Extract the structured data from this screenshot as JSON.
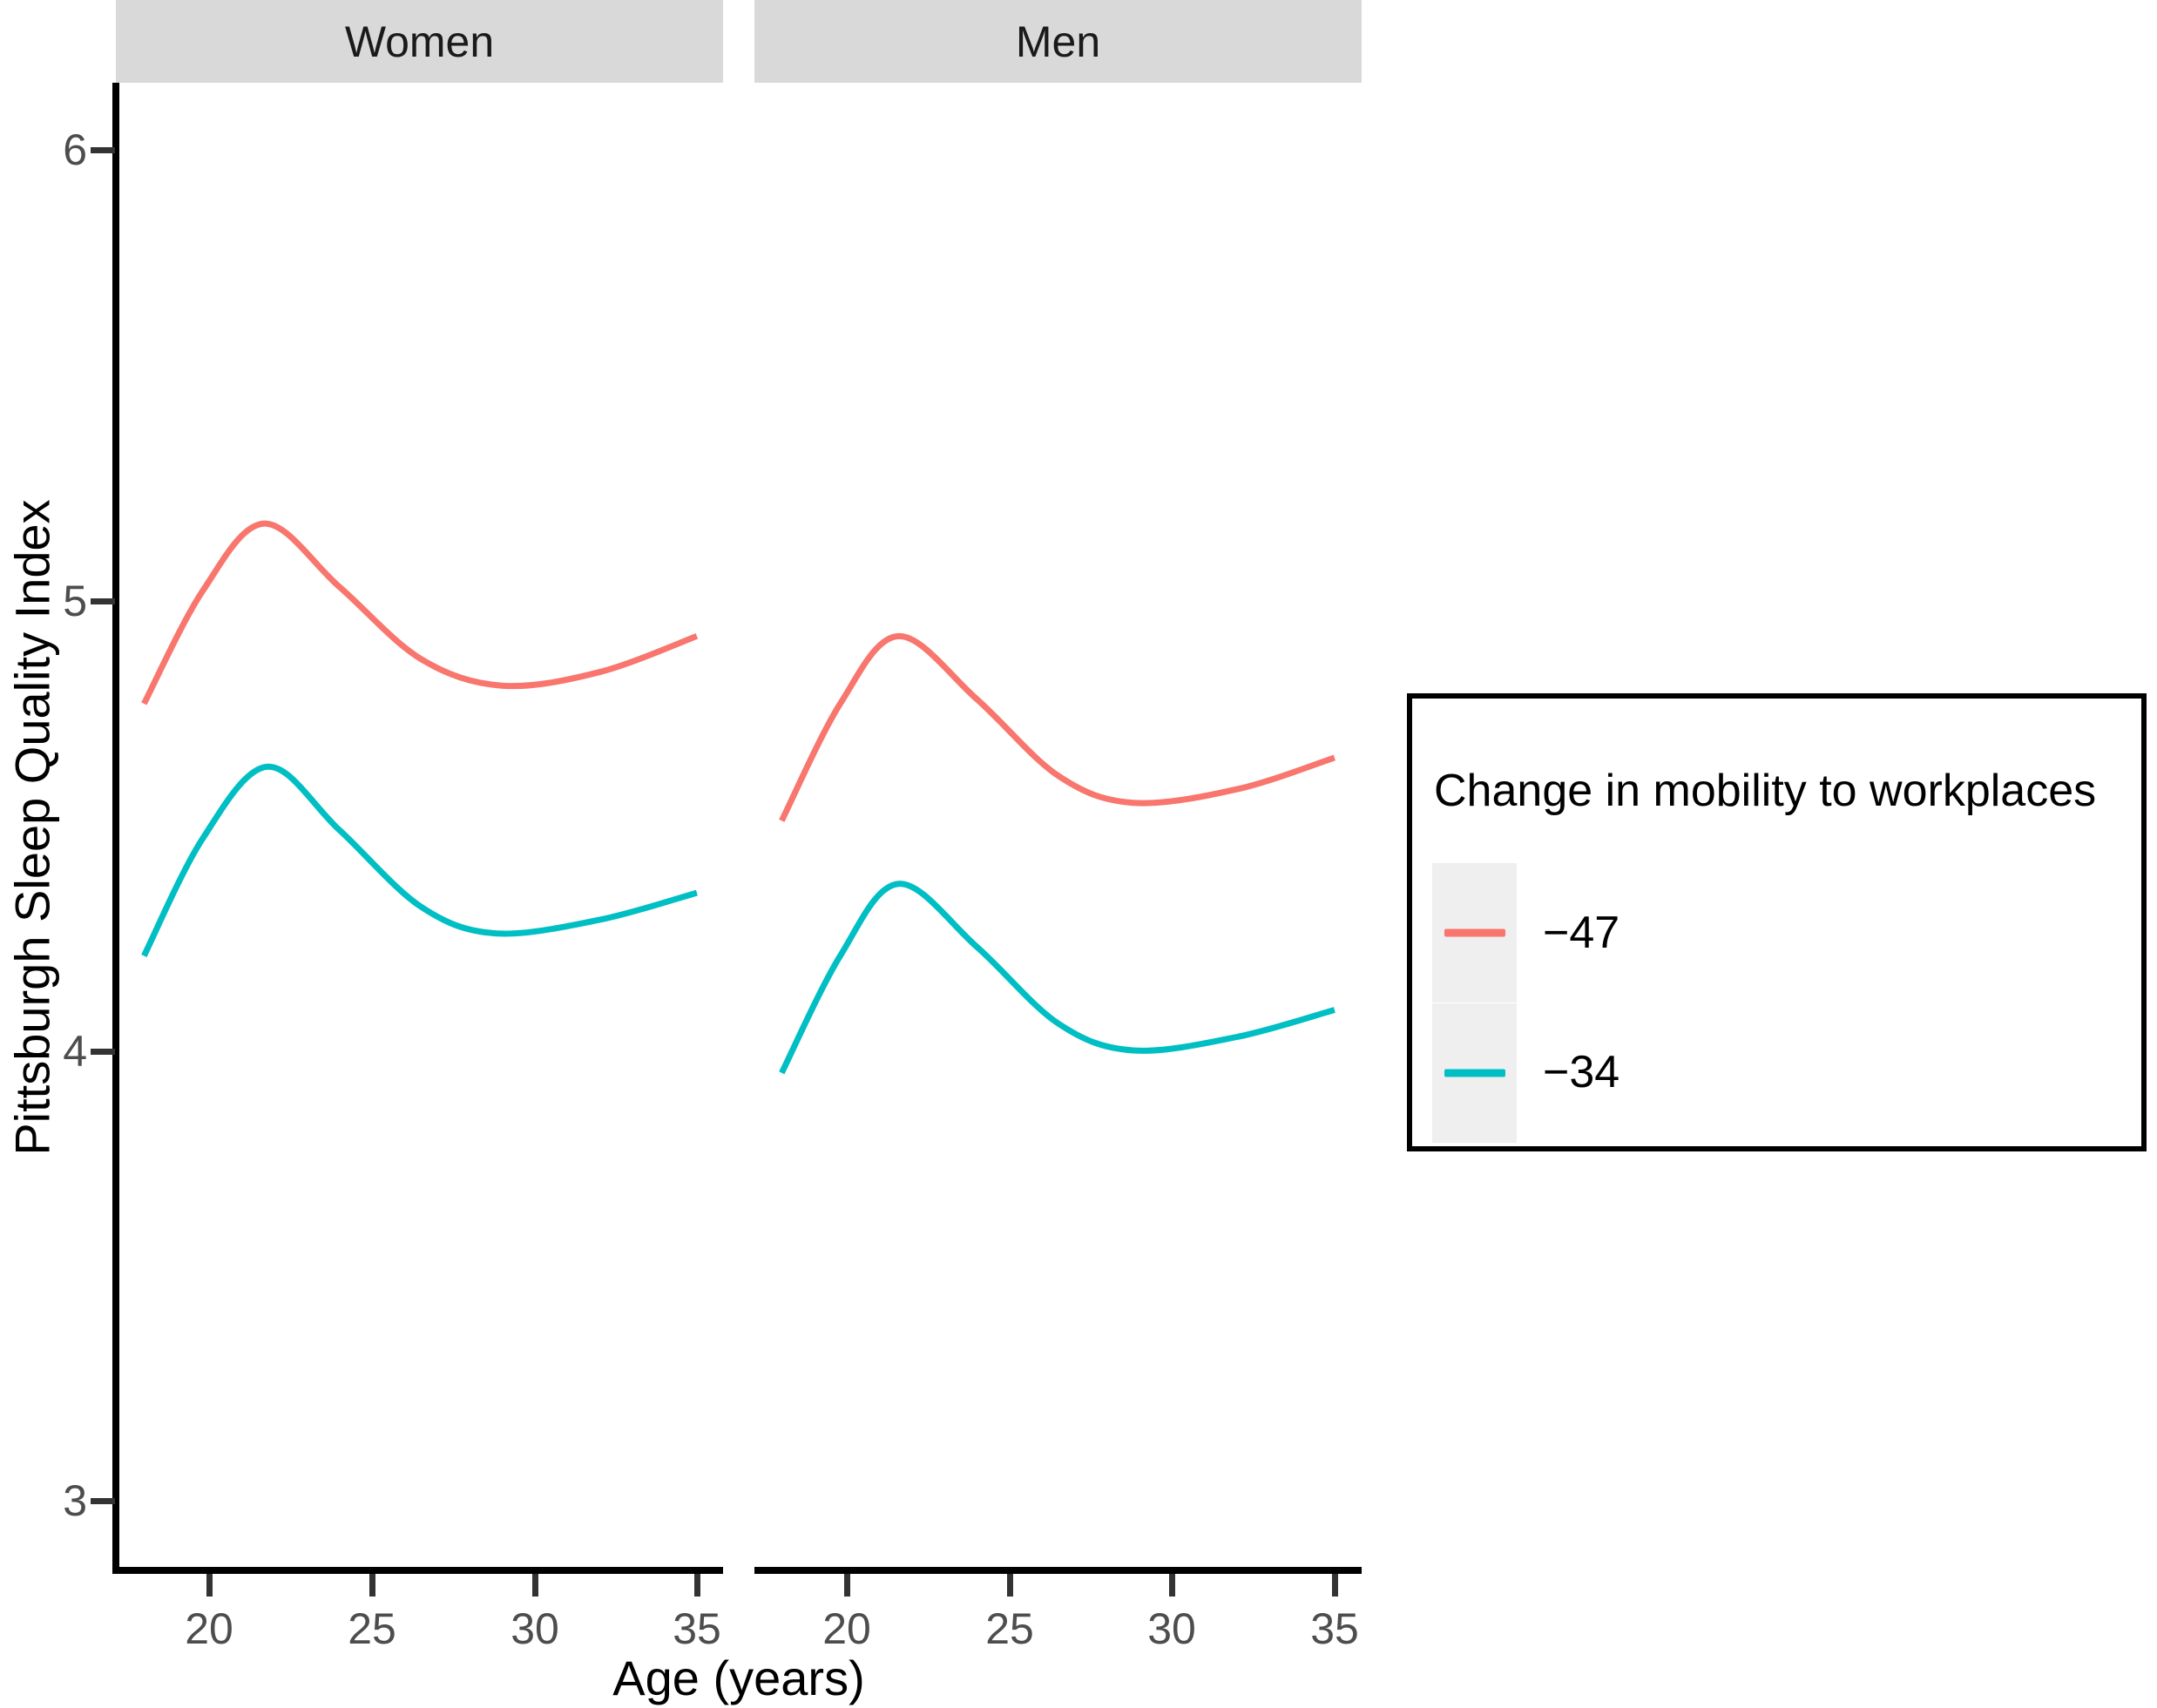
{
  "colors": {
    "red": "#F8766D",
    "teal": "#00BFC4",
    "strip_bg": "#D9D9D9",
    "axis_line": "#000000",
    "tick_mark": "#333333",
    "tick_label": "#4D4D4D",
    "legend_key_bg": "#EFEFEF"
  },
  "chart_data": {
    "type": "line",
    "xlabel": "Age (years)",
    "ylabel": "Pittsburgh Sleep Quality Index",
    "x_ticks": [
      "20",
      "25",
      "30",
      "35"
    ],
    "y_ticks": [
      "6",
      "5",
      "4",
      "3"
    ],
    "x_range": [
      17.15,
      35.85
    ],
    "y_range": [
      2.85,
      6.15
    ],
    "grid": "off",
    "facets": [
      {
        "label": "Women",
        "series": [
          {
            "name": "−47",
            "color_key": "red",
            "points": [
              [
                18,
                4.77
              ],
              [
                19.8,
                5.02
              ],
              [
                21.7,
                5.17
              ],
              [
                24,
                5.03
              ],
              [
                26.5,
                4.87
              ],
              [
                29,
                4.81
              ],
              [
                32,
                4.84
              ],
              [
                35,
                4.92
              ]
            ]
          },
          {
            "name": "−34",
            "color_key": "teal",
            "points": [
              [
                18,
                4.21
              ],
              [
                19.8,
                4.47
              ],
              [
                21.8,
                4.63
              ],
              [
                24,
                4.49
              ],
              [
                26.5,
                4.32
              ],
              [
                28.8,
                4.26
              ],
              [
                32,
                4.29
              ],
              [
                35,
                4.35
              ]
            ]
          }
        ]
      },
      {
        "label": "Men",
        "series": [
          {
            "name": "−47",
            "color_key": "red",
            "points": [
              [
                18,
                4.51
              ],
              [
                19.8,
                4.77
              ],
              [
                21.6,
                4.92
              ],
              [
                24,
                4.78
              ],
              [
                26.5,
                4.61
              ],
              [
                28.8,
                4.55
              ],
              [
                32,
                4.58
              ],
              [
                35,
                4.65
              ]
            ]
          },
          {
            "name": "−34",
            "color_key": "teal",
            "points": [
              [
                18,
                3.95
              ],
              [
                19.8,
                4.21
              ],
              [
                21.6,
                4.37
              ],
              [
                24,
                4.23
              ],
              [
                26.5,
                4.06
              ],
              [
                28.8,
                4.0
              ],
              [
                32,
                4.03
              ],
              [
                35,
                4.09
              ]
            ]
          }
        ]
      }
    ],
    "legend": {
      "position": "right",
      "title": "Change in mobility to workplaces",
      "entries": [
        {
          "label": "−47",
          "color": "#F8766D"
        },
        {
          "label": "−34",
          "color": "#00BFC4"
        }
      ]
    }
  }
}
